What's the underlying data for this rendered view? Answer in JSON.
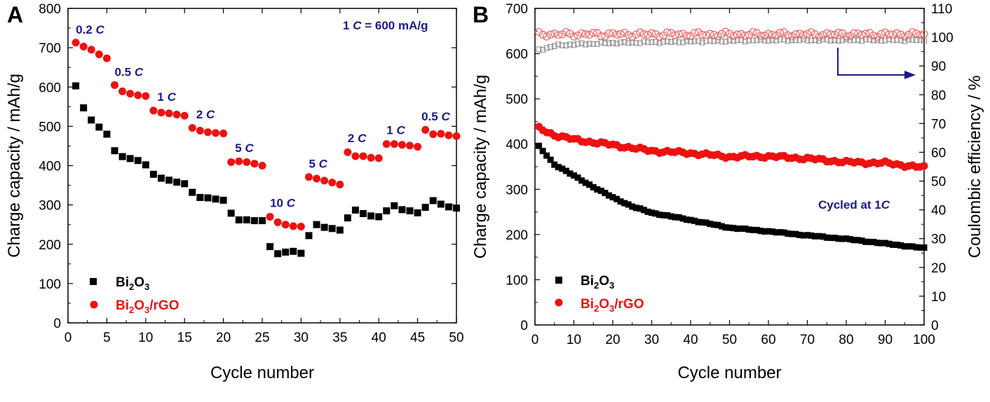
{
  "chart_data": [
    {
      "type": "scatter",
      "panel": "A",
      "xlabel": "Cycle number",
      "ylabel": "Charge capacity / mAh/g",
      "xlim": [
        0,
        50
      ],
      "ylim": [
        0,
        800
      ],
      "xticks": [
        0,
        5,
        10,
        15,
        20,
        25,
        30,
        35,
        40,
        45,
        50
      ],
      "yticks": [
        0,
        100,
        200,
        300,
        400,
        500,
        600,
        700,
        800
      ],
      "grid": false,
      "legend": "bottom-left",
      "rate_note": {
        "prefix": "1",
        "unit": "C",
        "suffix": "= 600 mA/g"
      },
      "rate_labels": [
        {
          "num": "0.2",
          "unit": "C",
          "x": 1.0,
          "y": 736
        },
        {
          "num": "0.5",
          "unit": "C",
          "x": 6.0,
          "y": 628
        },
        {
          "num": "1",
          "unit": "C",
          "x": 11.5,
          "y": 565
        },
        {
          "num": "2",
          "unit": "C",
          "x": 16.5,
          "y": 520
        },
        {
          "num": "5",
          "unit": "C",
          "x": 21.5,
          "y": 435
        },
        {
          "num": "10",
          "unit": "C",
          "x": 26.0,
          "y": 295
        },
        {
          "num": "5",
          "unit": "C",
          "x": 31.0,
          "y": 395
        },
        {
          "num": "2",
          "unit": "C",
          "x": 36.0,
          "y": 460
        },
        {
          "num": "1",
          "unit": "C",
          "x": 41.0,
          "y": 480
        },
        {
          "num": "0.5",
          "unit": "C",
          "x": 45.5,
          "y": 515
        }
      ],
      "series": [
        {
          "name": "Bi2O3",
          "color": "#000000",
          "marker": "square",
          "x": [
            1,
            2,
            3,
            4,
            5,
            6,
            7,
            8,
            9,
            10,
            11,
            12,
            13,
            14,
            15,
            16,
            17,
            18,
            19,
            20,
            21,
            22,
            23,
            24,
            25,
            26,
            27,
            28,
            29,
            30,
            31,
            32,
            33,
            34,
            35,
            36,
            37,
            38,
            39,
            40,
            41,
            42,
            43,
            44,
            45,
            46,
            47,
            48,
            49,
            50
          ],
          "y": [
            603,
            547,
            516,
            498,
            480,
            438,
            423,
            418,
            413,
            402,
            378,
            368,
            363,
            358,
            354,
            332,
            319,
            318,
            315,
            312,
            279,
            262,
            262,
            260,
            260,
            194,
            176,
            180,
            182,
            177,
            222,
            250,
            243,
            240,
            236,
            267,
            287,
            278,
            272,
            270,
            285,
            298,
            288,
            285,
            280,
            294,
            311,
            302,
            295,
            292
          ]
        },
        {
          "name": "Bi2O3/rGO",
          "color": "#ee1111",
          "marker": "circle",
          "x": [
            1,
            2,
            3,
            4,
            5,
            6,
            7,
            8,
            9,
            10,
            11,
            12,
            13,
            14,
            15,
            16,
            17,
            18,
            19,
            20,
            21,
            22,
            23,
            24,
            25,
            26,
            27,
            28,
            29,
            30,
            31,
            32,
            33,
            34,
            35,
            36,
            37,
            38,
            39,
            40,
            41,
            42,
            43,
            44,
            45,
            46,
            47,
            48,
            49,
            50
          ],
          "y": [
            713,
            703,
            695,
            683,
            673,
            605,
            589,
            583,
            579,
            577,
            540,
            535,
            533,
            530,
            527,
            496,
            489,
            485,
            483,
            482,
            409,
            411,
            409,
            405,
            400,
            270,
            256,
            250,
            246,
            245,
            371,
            367,
            362,
            357,
            352,
            434,
            424,
            424,
            420,
            419,
            455,
            455,
            453,
            451,
            448,
            491,
            480,
            481,
            477,
            475
          ]
        }
      ]
    },
    {
      "type": "scatter",
      "panel": "B",
      "xlabel": "Cycle number",
      "ylabel": "Charge capacity / mAh/g",
      "y2label": "Coulombic efficiency / %",
      "xlim": [
        0,
        100
      ],
      "ylim": [
        0,
        700
      ],
      "y2lim": [
        0,
        110
      ],
      "xticks": [
        0,
        10,
        20,
        30,
        40,
        50,
        60,
        70,
        80,
        90,
        100
      ],
      "yticks": [
        0,
        100,
        200,
        300,
        400,
        500,
        600,
        700
      ],
      "y2ticks": [
        0,
        10,
        20,
        30,
        40,
        50,
        60,
        70,
        80,
        90,
        100,
        110
      ],
      "grid": false,
      "legend": "bottom-left",
      "annotation": {
        "prefix": "Cycled at 1",
        "unit": "C"
      },
      "capacity_curves": [
        {
          "name": "Bi2O3",
          "color": "#000000",
          "marker": "square",
          "anchors_x": [
            1,
            5,
            10,
            15,
            20,
            25,
            30,
            40,
            50,
            60,
            70,
            80,
            90,
            100
          ],
          "anchors_y": [
            395,
            355,
            330,
            305,
            282,
            262,
            248,
            232,
            215,
            207,
            198,
            190,
            180,
            170
          ]
        },
        {
          "name": "Bi2O3/rGO",
          "color": "#ee1111",
          "marker": "circle",
          "anchors_x": [
            1,
            5,
            10,
            20,
            30,
            40,
            50,
            60,
            70,
            80,
            90,
            100
          ],
          "anchors_y": [
            435,
            420,
            410,
            398,
            385,
            380,
            372,
            373,
            368,
            360,
            358,
            348
          ]
        }
      ],
      "efficiency_curves": [
        {
          "name": "Bi2O3",
          "color": "#888888",
          "marker": "open-square",
          "anchors_x": [
            1,
            5,
            10,
            20,
            40,
            60,
            100
          ],
          "anchors_y": [
            95.5,
            97,
            97.5,
            98,
            98.5,
            99,
            99
          ]
        },
        {
          "name": "Bi2O3/rGO",
          "color": "#ee6666",
          "marker": "open-circle",
          "anchors_x": [
            1,
            100
          ],
          "anchors_y": [
            101,
            101
          ]
        }
      ]
    }
  ],
  "legend_labels": {
    "bi_base": "Bi",
    "bi_sub1": "2",
    "bi_mid": "O",
    "bi_sub2": "3",
    "rgo_suffix": "/rGO"
  },
  "panel_labels": [
    "A",
    "B"
  ]
}
